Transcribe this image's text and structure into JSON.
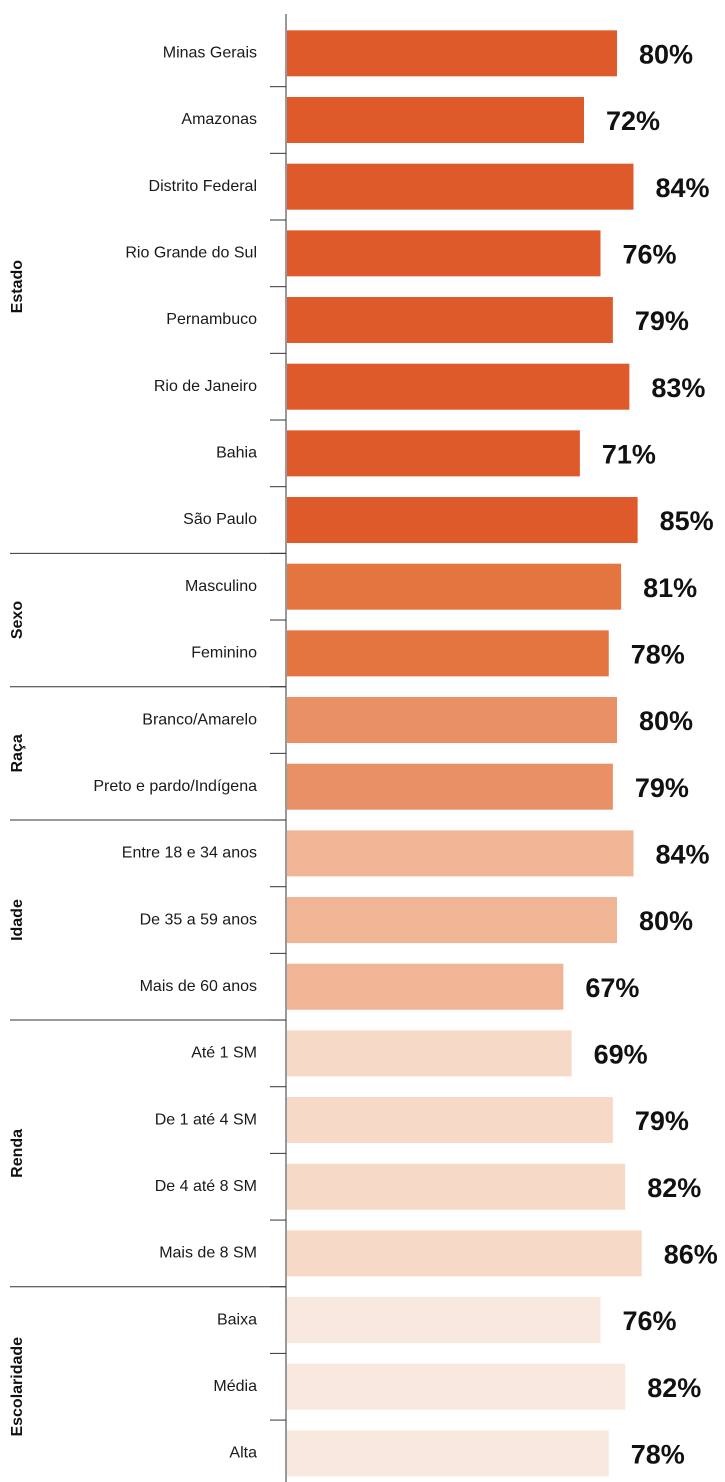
{
  "chart_data": {
    "type": "bar",
    "groups": [
      {
        "name": "Estado",
        "color": "#de5a2a",
        "categories": [
          "Minas Gerais",
          "Amazonas",
          "Distrito Federal",
          "Rio Grande do Sul",
          "Pernambuco",
          "Rio de Janeiro",
          "Bahia",
          "São Paulo"
        ],
        "values": [
          80,
          72,
          84,
          76,
          79,
          83,
          71,
          85
        ],
        "value_labels": [
          "80%",
          "72%",
          "84%",
          "76%",
          "79%",
          "83%",
          "71%",
          "85%"
        ]
      },
      {
        "name": "Sexo",
        "color": "#e47541",
        "categories": [
          "Masculino",
          "Feminino"
        ],
        "values": [
          81,
          78
        ],
        "value_labels": [
          "81%",
          "78%"
        ]
      },
      {
        "name": "Raça",
        "color": "#e99066",
        "categories": [
          "Branco/Amarelo",
          "Preto e pardo/Indígena"
        ],
        "values": [
          80,
          79
        ],
        "value_labels": [
          "80%",
          "79%"
        ]
      },
      {
        "name": "Idade",
        "color": "#efb594",
        "categories": [
          "Entre 18 e 34 anos",
          "De 35 a 59 anos",
          "Mais de 60 anos"
        ],
        "values": [
          84,
          80,
          67
        ],
        "value_labels": [
          "84%",
          "80%",
          "67%"
        ]
      },
      {
        "name": "Renda",
        "color": "#f6d9c7",
        "categories": [
          "Até 1 SM",
          "De 1 até 4 SM",
          "De 4 até 8 SM",
          "Mais de 8 SM"
        ],
        "values": [
          69,
          79,
          82,
          86
        ],
        "value_labels": [
          "69%",
          "79%",
          "82%",
          "86%"
        ]
      },
      {
        "name": "Escolaridade",
        "color": "#f9e8dd",
        "categories": [
          "Baixa",
          "Média",
          "Alta"
        ],
        "values": [
          76,
          82,
          78
        ],
        "value_labels": [
          "76%",
          "82%",
          "78%"
        ]
      }
    ]
  }
}
